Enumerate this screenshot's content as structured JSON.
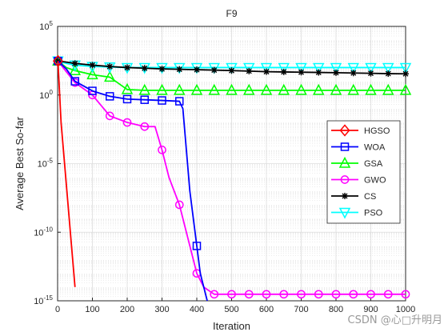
{
  "chart_data": {
    "type": "line",
    "title": "F9",
    "xlabel": "Iteration",
    "ylabel": "Average Best So-far",
    "xlim": [
      0,
      1000
    ],
    "ylim": [
      1e-15,
      100000.0
    ],
    "yscale": "log",
    "grid": true,
    "minor_grid": true,
    "legend_position": "right",
    "x_ticks": [
      0,
      100,
      200,
      300,
      400,
      500,
      600,
      700,
      800,
      900,
      1000
    ],
    "x_tick_labels": [
      "0",
      "100",
      "200",
      "300",
      "400",
      "500",
      "600",
      "700",
      "800",
      "900",
      "1000"
    ],
    "y_ticks": [
      1e-15,
      1e-10,
      1e-05,
      1,
      100000.0
    ],
    "y_tick_labels": [
      {
        "base": "10",
        "exp": "-15"
      },
      {
        "base": "10",
        "exp": "-10"
      },
      {
        "base": "10",
        "exp": "-5"
      },
      {
        "base": "10",
        "exp": "0"
      },
      {
        "base": "10",
        "exp": "5"
      }
    ],
    "series": [
      {
        "name": "HGSO",
        "color": "#ff0000",
        "marker": "diamond",
        "x": [
          1,
          10,
          20,
          30,
          40,
          50
        ],
        "y": [
          300,
          0.01,
          1e-05,
          1e-08,
          1e-11,
          1e-14
        ]
      },
      {
        "name": "WOA",
        "color": "#0000ff",
        "marker": "square",
        "x": [
          1,
          25,
          50,
          100,
          150,
          200,
          250,
          300,
          350,
          360,
          370,
          380,
          390,
          400,
          410,
          420,
          430
        ],
        "y": [
          300,
          80,
          10,
          2,
          0.8,
          0.5,
          0.45,
          0.4,
          0.35,
          0.1,
          0.0001,
          1e-07,
          1e-09,
          1e-11,
          1e-13,
          1e-14,
          1e-15
        ]
      },
      {
        "name": "GSA",
        "color": "#00ff00",
        "marker": "triangle-up",
        "x": [
          1,
          25,
          50,
          100,
          150,
          200,
          250,
          300,
          350,
          400,
          450,
          500,
          550,
          600,
          650,
          700,
          750,
          800,
          850,
          900,
          950,
          1000
        ],
        "y": [
          300,
          100,
          60,
          30,
          20,
          2.5,
          2.2,
          2.2,
          2.2,
          2.2,
          2.2,
          2.2,
          2.2,
          2.2,
          2.2,
          2.2,
          2.2,
          2.2,
          2.2,
          2.2,
          2.2,
          2.2
        ]
      },
      {
        "name": "GWO",
        "color": "#ff00ff",
        "marker": "circle",
        "x": [
          1,
          25,
          50,
          100,
          150,
          200,
          250,
          280,
          300,
          320,
          350,
          370,
          400,
          420,
          450,
          500,
          550,
          600,
          650,
          700,
          750,
          800,
          850,
          900,
          950,
          1000
        ],
        "y": [
          300,
          50,
          8,
          1,
          0.03,
          0.01,
          0.005,
          0.005,
          0.0001,
          1e-06,
          1e-08,
          1e-10,
          1e-13,
          1e-14,
          3e-15,
          3e-15,
          3e-15,
          3e-15,
          3e-15,
          3e-15,
          3e-15,
          3e-15,
          3e-15,
          3e-15,
          3e-15,
          3e-15
        ]
      },
      {
        "name": "CS",
        "color": "#000000",
        "marker": "star",
        "x": [
          1,
          25,
          50,
          100,
          150,
          200,
          250,
          300,
          350,
          400,
          450,
          500,
          550,
          600,
          650,
          700,
          750,
          800,
          850,
          900,
          950,
          1000
        ],
        "y": [
          300,
          250,
          200,
          150,
          120,
          100,
          90,
          80,
          75,
          70,
          65,
          60,
          55,
          50,
          48,
          46,
          44,
          42,
          40,
          38,
          36,
          35
        ]
      },
      {
        "name": "PSO",
        "color": "#00ffff",
        "marker": "triangle-down",
        "x": [
          1,
          25,
          50,
          100,
          150,
          200,
          250,
          300,
          350,
          400,
          450,
          500,
          550,
          600,
          650,
          700,
          750,
          800,
          850,
          900,
          950,
          1000
        ],
        "y": [
          300,
          200,
          150,
          120,
          110,
          100,
          100,
          100,
          100,
          100,
          100,
          100,
          100,
          100,
          100,
          100,
          100,
          100,
          100,
          100,
          100,
          100
        ]
      }
    ]
  },
  "watermark": "CSDN @心□升明月"
}
